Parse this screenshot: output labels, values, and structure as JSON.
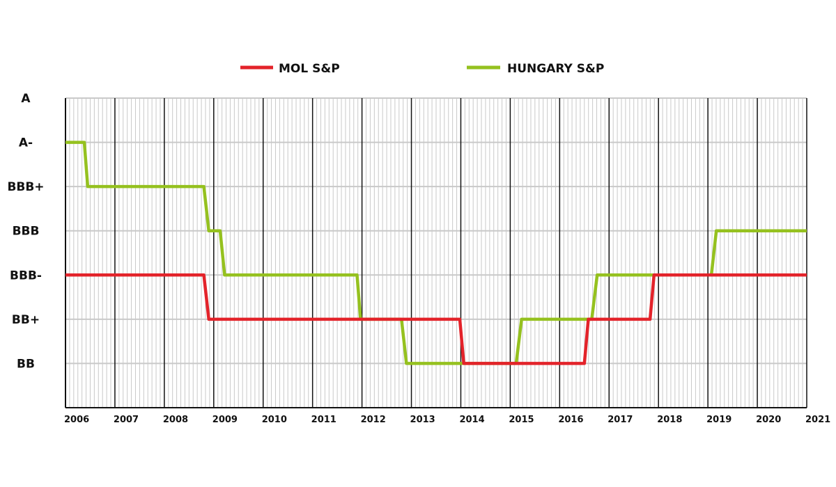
{
  "chart_data": {
    "type": "line",
    "title": "",
    "xlabel": "",
    "ylabel": "",
    "xlim": [
      2006,
      2021
    ],
    "x_ticks": [
      "2006",
      "2007",
      "2008",
      "2009",
      "2010",
      "2011",
      "2012",
      "2013",
      "2014",
      "2015",
      "2016",
      "2017",
      "2018",
      "2019",
      "2020",
      "2021"
    ],
    "y_levels": [
      "A",
      "A-",
      "BBB+",
      "BBB",
      "BBB-",
      "BB+",
      "BB",
      ""
    ],
    "grid": true,
    "legend_position": "top-center",
    "series": [
      {
        "name": "MOL S&P",
        "color": "#e3232a",
        "points": [
          [
            2006,
            "BBB-"
          ],
          [
            2008.8,
            "BBB-"
          ],
          [
            2008.9,
            "BB+"
          ],
          [
            2013.98,
            "BB+"
          ],
          [
            2014.06,
            "BB"
          ],
          [
            2016.5,
            "BB"
          ],
          [
            2016.58,
            "BB+"
          ],
          [
            2017.83,
            "BB+"
          ],
          [
            2017.91,
            "BBB-"
          ],
          [
            2021,
            "BBB-"
          ]
        ]
      },
      {
        "name": "HUNGARY S&P",
        "color": "#95c11f",
        "points": [
          [
            2006,
            "A-"
          ],
          [
            2006.38,
            "A-"
          ],
          [
            2006.45,
            "BBB+"
          ],
          [
            2008.8,
            "BBB+"
          ],
          [
            2008.9,
            "BBB"
          ],
          [
            2009.13,
            "BBB"
          ],
          [
            2009.22,
            "BBB-"
          ],
          [
            2011.9,
            "BBB-"
          ],
          [
            2011.97,
            "BB+"
          ],
          [
            2012.8,
            "BB+"
          ],
          [
            2012.9,
            "BB"
          ],
          [
            2015.12,
            "BB"
          ],
          [
            2015.23,
            "BB+"
          ],
          [
            2016.65,
            "BB+"
          ],
          [
            2016.76,
            "BBB-"
          ],
          [
            2019.07,
            "BBB-"
          ],
          [
            2019.17,
            "BBB"
          ],
          [
            2021,
            "BBB"
          ]
        ]
      }
    ]
  }
}
